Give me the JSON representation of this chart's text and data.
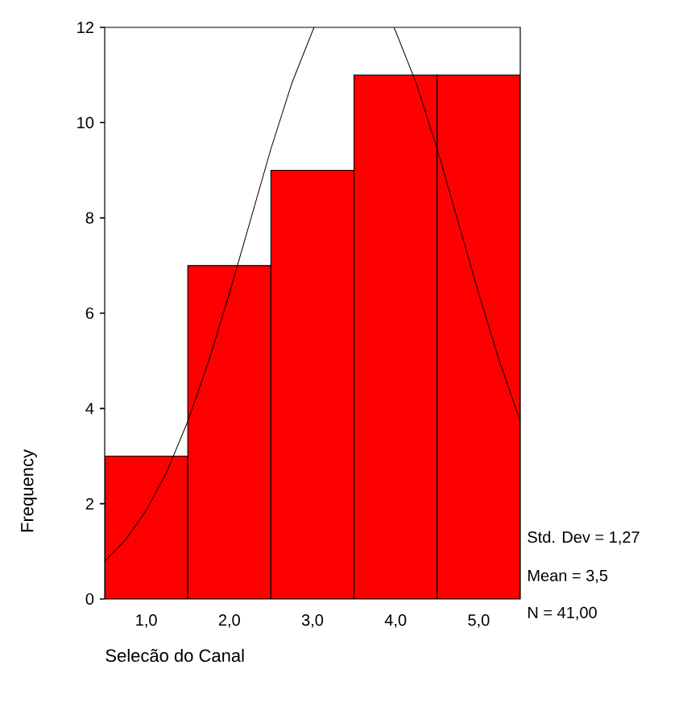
{
  "chart_data": {
    "type": "histogram",
    "bins": [
      0.5,
      1.5,
      2.5,
      3.5,
      4.5,
      5.5
    ],
    "values": [
      3,
      7,
      9,
      11,
      11
    ],
    "color": "#ff0000",
    "series": [
      {
        "type": "line",
        "color": "#000000",
        "x": [
          0.5,
          0.75,
          1.0,
          1.25,
          1.5,
          1.75,
          2.0,
          2.25,
          2.5,
          2.75,
          3.0,
          3.02,
          3.5,
          3.98,
          4.0,
          4.25,
          4.5,
          4.75,
          5.0,
          5.25,
          5.5
        ],
        "values": [
          0.79,
          1.24,
          1.86,
          2.68,
          3.73,
          4.99,
          6.41,
          7.93,
          9.45,
          10.82,
          11.92,
          12,
          null,
          12,
          11.92,
          10.82,
          9.45,
          7.93,
          6.41,
          4.99,
          3.73
        ]
      }
    ],
    "xlabel": "Selecão do Canal",
    "ylabel": "Frequency",
    "xlim": [
      0.5,
      5.5
    ],
    "ylim": [
      0,
      12
    ],
    "xticks": [
      {
        "value": 1,
        "label": "1,0"
      },
      {
        "value": 2,
        "label": "2,0"
      },
      {
        "value": 3,
        "label": "3,0"
      },
      {
        "value": 4,
        "label": "4,0"
      },
      {
        "value": 5,
        "label": "5,0"
      }
    ],
    "yticks": [
      0,
      2,
      4,
      6,
      8,
      10,
      12
    ],
    "annotations": [
      "Std. Dev = 1,27",
      "Mean = 3,5",
      "N = 41,00"
    ]
  }
}
